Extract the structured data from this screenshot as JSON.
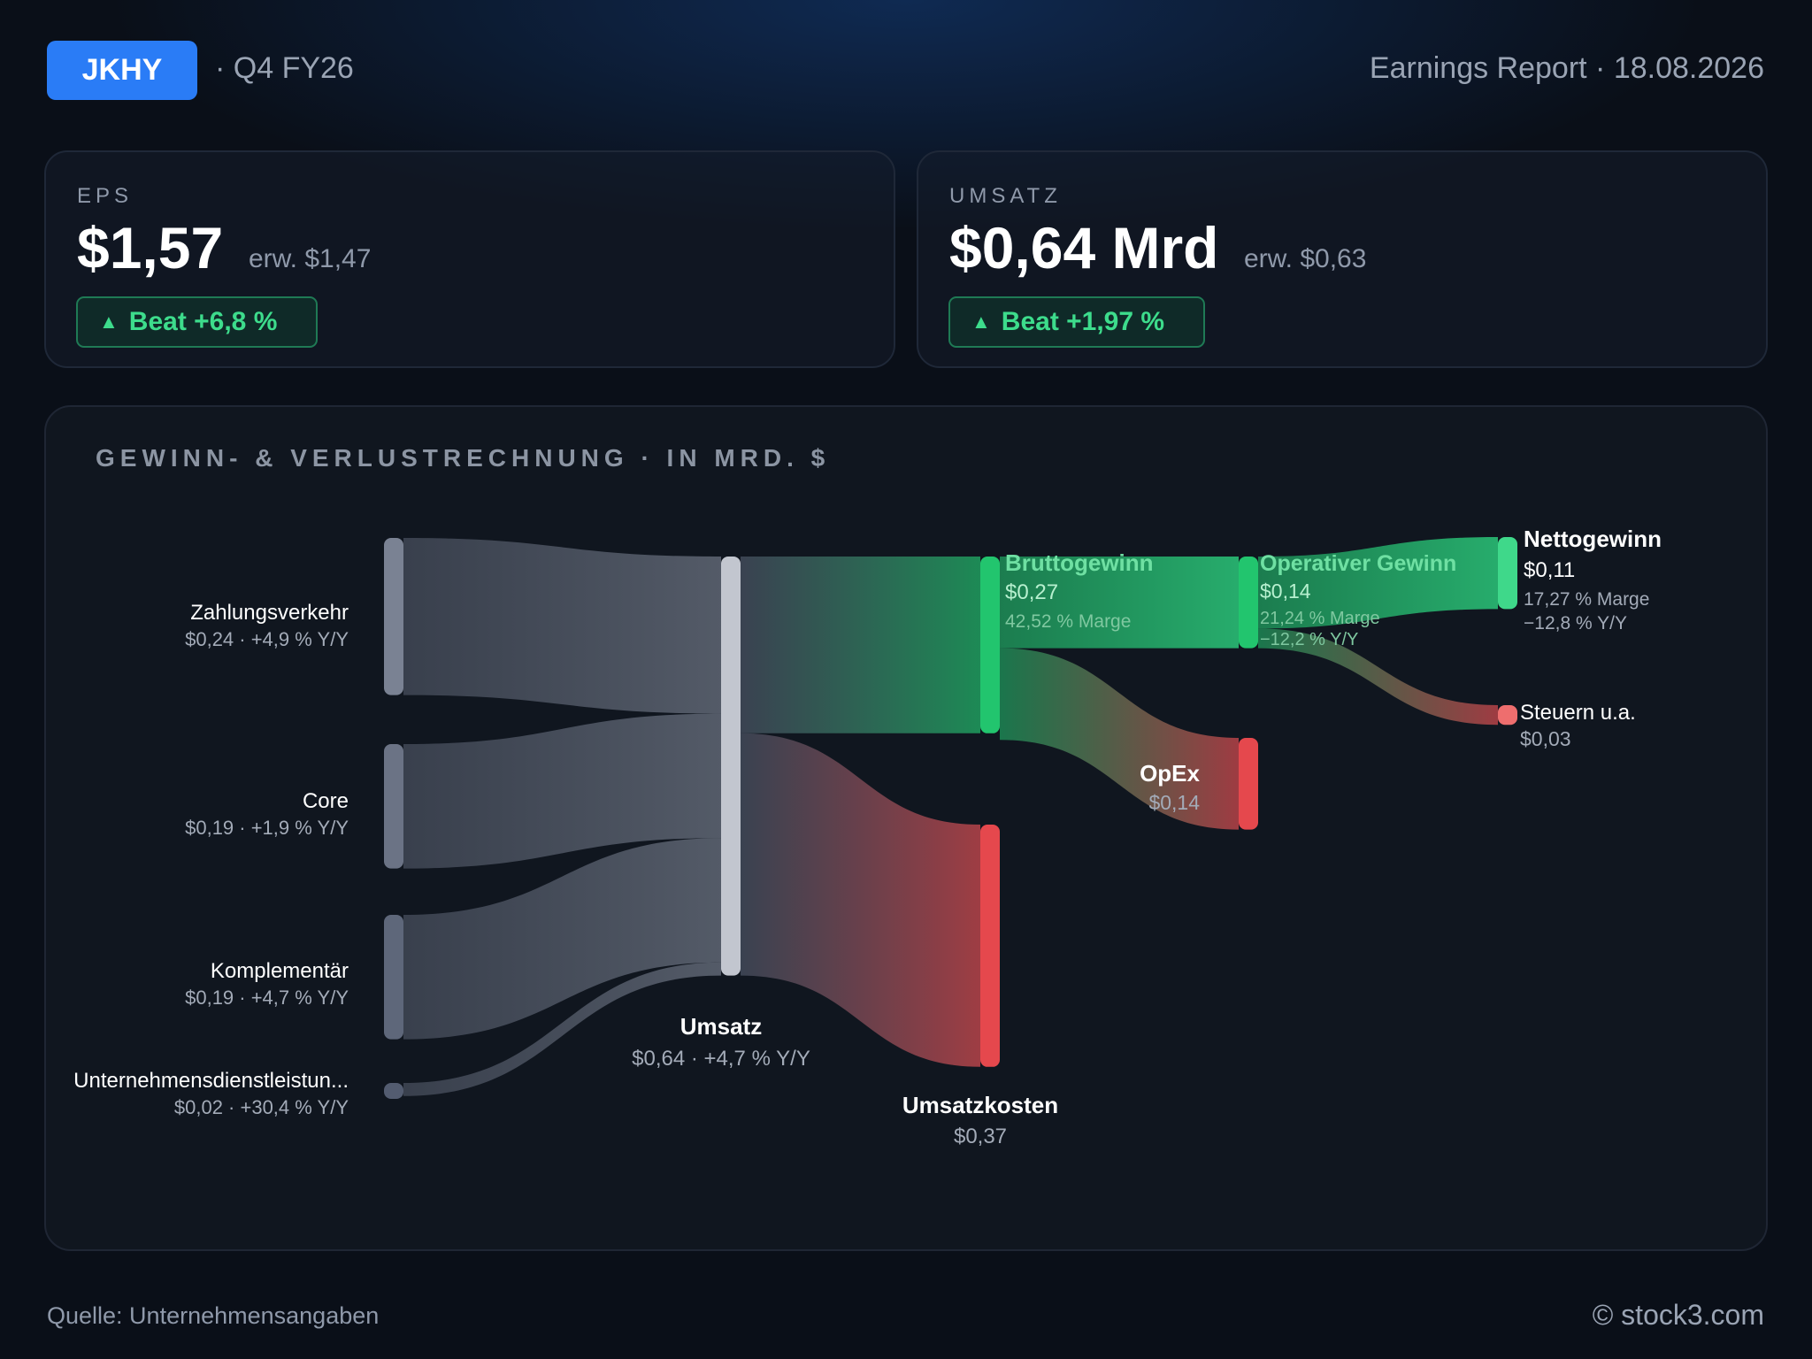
{
  "header": {
    "ticker": "JKHY",
    "quarter": "· Q4 FY26",
    "report": "Earnings Report · 18.08.2026"
  },
  "cards": {
    "eps": {
      "label": "EPS",
      "value": "$1,57",
      "estimate": "erw. $1,47",
      "beat": "Beat +6,8 %"
    },
    "revenue": {
      "label": "UMSATZ",
      "value": "$0,64 Mrd",
      "estimate": "erw. $0,63",
      "beat": "Beat +1,97 %"
    }
  },
  "panel": {
    "title": "GEWINN- & VERLUSTRECHNUNG · IN MRD. $"
  },
  "colors": {
    "accent": "#2a7cf6",
    "positive": "#22c56e",
    "negative": "#e5484d",
    "segment": "#6b7385"
  },
  "chart_data": {
    "type": "sankey",
    "unit": "Mrd. $",
    "nodes": [
      {
        "id": "zahlungsverkehr",
        "name": "Zahlungsverkehr",
        "value": 0.24,
        "value_label": "$0,24 · +4,9 % Y/Y"
      },
      {
        "id": "core",
        "name": "Core",
        "value": 0.19,
        "value_label": "$0,19 · +1,9 % Y/Y"
      },
      {
        "id": "komplementaer",
        "name": "Komplementär",
        "value": 0.19,
        "value_label": "$0,19 · +4,7 % Y/Y"
      },
      {
        "id": "unternehmensdienst",
        "name": "Unternehmensdienstleistun...",
        "value": 0.02,
        "value_label": "$0,02 · +30,4 % Y/Y"
      },
      {
        "id": "umsatz",
        "name": "Umsatz",
        "value": 0.64,
        "value_label": "$0,64 · +4,7 % Y/Y"
      },
      {
        "id": "brutto",
        "name": "Bruttogewinn",
        "value": 0.27,
        "value_label": "$0,27",
        "sub_label": "42,52 % Marge"
      },
      {
        "id": "umsatzkosten",
        "name": "Umsatzkosten",
        "value": 0.37,
        "value_label": "$0,37"
      },
      {
        "id": "operativ",
        "name": "Operativer Gewinn",
        "value": 0.14,
        "value_label": "$0,14",
        "sub_label": "21,24 % Marge",
        "sub_label2": "−12,2 % Y/Y"
      },
      {
        "id": "opex",
        "name": "OpEx",
        "value": 0.14,
        "value_label": "$0,14"
      },
      {
        "id": "netto",
        "name": "Nettogewinn",
        "value": 0.11,
        "value_label": "$0,11",
        "sub_label": "17,27 % Marge",
        "sub_label2": "−12,8 % Y/Y"
      },
      {
        "id": "steuern",
        "name": "Steuern u.a.",
        "value": 0.03,
        "value_label": "$0,03"
      }
    ],
    "links": [
      {
        "source": "zahlungsverkehr",
        "target": "umsatz",
        "value": 0.24
      },
      {
        "source": "core",
        "target": "umsatz",
        "value": 0.19
      },
      {
        "source": "komplementaer",
        "target": "umsatz",
        "value": 0.19
      },
      {
        "source": "unternehmensdienst",
        "target": "umsatz",
        "value": 0.02
      },
      {
        "source": "umsatz",
        "target": "brutto",
        "value": 0.27
      },
      {
        "source": "umsatz",
        "target": "umsatzkosten",
        "value": 0.37
      },
      {
        "source": "brutto",
        "target": "operativ",
        "value": 0.14
      },
      {
        "source": "brutto",
        "target": "opex",
        "value": 0.14
      },
      {
        "source": "operativ",
        "target": "netto",
        "value": 0.11
      },
      {
        "source": "operativ",
        "target": "steuern",
        "value": 0.03
      }
    ]
  },
  "footer": {
    "source": "Quelle: Unternehmensangaben",
    "copyright": "© stock3.com"
  }
}
